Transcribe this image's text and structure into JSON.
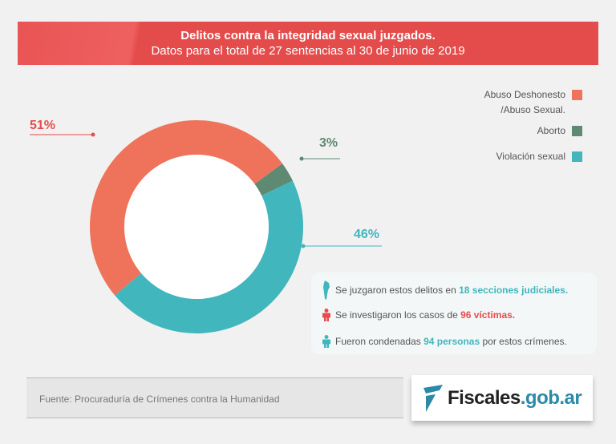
{
  "header": {
    "title": "Delitos contra la integridad sexual juzgados.",
    "subtitle": "Datos para el total de 27 sentencias al 30 de junio de 2019"
  },
  "chart_data": {
    "type": "pie",
    "variant": "donut",
    "title": "Delitos contra la integridad sexual juzgados.",
    "subtitle": "Datos para el total de 27 sentencias al 30 de junio de 2019",
    "categories": [
      "Abuso Deshonesto /Abuso Sexual.",
      "Aborto",
      "Violación sexual"
    ],
    "values": [
      51,
      3,
      46
    ],
    "labels": [
      "51%",
      "3%",
      "46%"
    ],
    "colors": [
      "#ef735a",
      "#5e8a74",
      "#41b6bd"
    ],
    "legend": "top-right"
  },
  "legend": [
    {
      "label": "Abuso Deshonesto",
      "label2": "/Abuso Sexual.",
      "color": "#ef735a"
    },
    {
      "label": "Aborto",
      "color": "#5e8a74"
    },
    {
      "label": "Violación sexual",
      "color": "#41b6bd"
    }
  ],
  "info": [
    {
      "icon": "argentina-map-icon",
      "pre": "Se juzgaron estos delitos en ",
      "bold": "18 secciones judiciales.",
      "post": "",
      "color": "#41b6bd"
    },
    {
      "icon": "person-icon",
      "pre": "Se investigaron los casos de ",
      "bold": "96 víctimas.",
      "post": "",
      "color": "#e84c4c"
    },
    {
      "icon": "person-icon",
      "pre": "Fueron condenadas ",
      "bold": "94 personas",
      "post": " por estos crímenes.",
      "color": "#41b6bd"
    }
  ],
  "source": "Fuente: Procuraduría de Crímenes contra la Humanidad",
  "logo": {
    "main": "Fiscales",
    "domain": ".gob.ar"
  }
}
